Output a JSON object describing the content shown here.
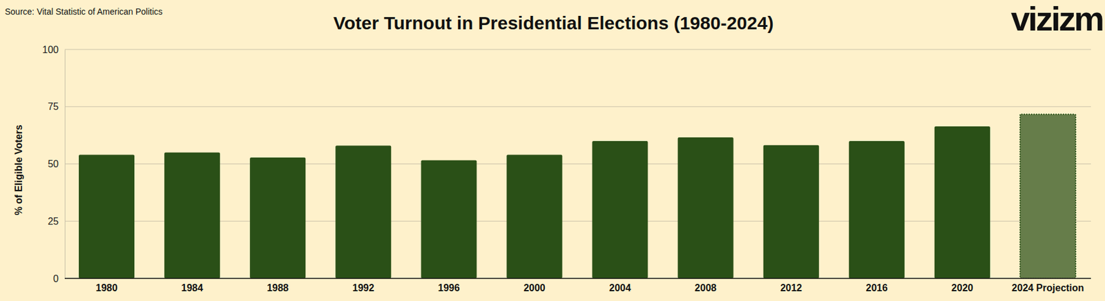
{
  "chart_data": {
    "type": "bar",
    "title": "Voter Turnout in Presidential Elections (1980-2024)",
    "source": "Source: Vital Statistic of American Politics",
    "logo": "vizizm",
    "y_label": "% of Eligible Voters",
    "categories": [
      "1980",
      "1984",
      "1988",
      "1992",
      "1996",
      "2000",
      "2004",
      "2008",
      "2012",
      "2016",
      "2020",
      "2024 Projection"
    ],
    "values": [
      54,
      55,
      52.8,
      58,
      51.6,
      54,
      60,
      61.6,
      58.2,
      60,
      66.4,
      71.7
    ],
    "color": "#2a5017",
    "colors": [
      "#2a5017",
      "#2a5017",
      "#2a5017",
      "#2a5017",
      "#2a5017",
      "#2a5017",
      "#2a5017",
      "#2a5017",
      "#2a5017",
      "#2a5017",
      "#2a5017",
      "#667d4a"
    ],
    "ylim": [
      0,
      100
    ],
    "yticks": [
      0,
      25,
      50,
      75,
      100
    ],
    "grid": true
  }
}
